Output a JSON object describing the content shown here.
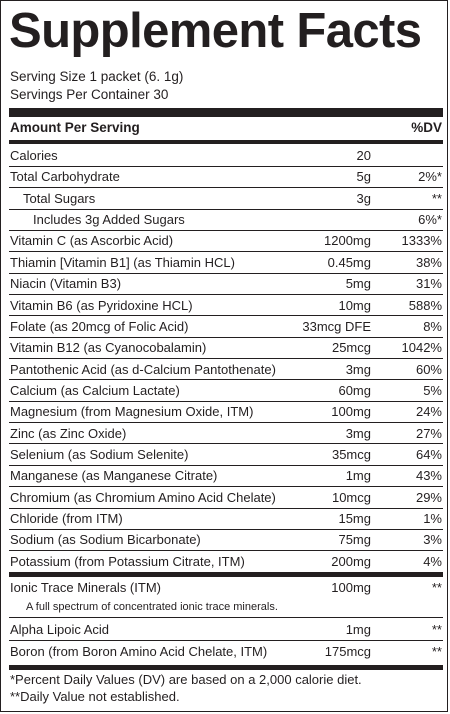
{
  "title": "Supplement Facts",
  "serving_size": "Serving Size 1 packet (6. 1g)",
  "servings_per_container": "Servings Per Container 30",
  "header": {
    "amount": "Amount Per Serving",
    "dv": "%DV"
  },
  "rows": [
    {
      "label": "Calories",
      "amount": "20",
      "dv": ""
    },
    {
      "label": "Total Carbohydrate",
      "amount": "5g",
      "dv": "2%*"
    },
    {
      "label": "Total Sugars",
      "amount": "3g",
      "dv": "**"
    },
    {
      "label": "Includes 3g Added Sugars",
      "amount": "",
      "dv": "6%*"
    },
    {
      "label": "Vitamin C (as Ascorbic Acid)",
      "amount": "1200mg",
      "dv": "1333%"
    },
    {
      "label": "Thiamin [Vitamin B1] (as Thiamin HCL)",
      "amount": "0.45mg",
      "dv": "38%"
    },
    {
      "label": "Niacin (Vitamin B3)",
      "amount": "5mg",
      "dv": "31%"
    },
    {
      "label": "Vitamin B6 (as Pyridoxine HCL)",
      "amount": "10mg",
      "dv": "588%"
    },
    {
      "label": "Folate (as 20mcg of Folic Acid)",
      "amount": "33mcg DFE",
      "dv": "8%"
    },
    {
      "label": "Vitamin B12 (as Cyanocobalamin)",
      "amount": "25mcg",
      "dv": "1042%"
    },
    {
      "label": "Pantothenic Acid (as d-Calcium Pantothenate)",
      "amount": "3mg",
      "dv": "60%"
    },
    {
      "label": "Calcium (as Calcium Lactate)",
      "amount": "60mg",
      "dv": "5%"
    },
    {
      "label": "Magnesium (from Magnesium Oxide, ITM)",
      "amount": "100mg",
      "dv": "24%"
    },
    {
      "label": "Zinc (as Zinc Oxide)",
      "amount": "3mg",
      "dv": "27%"
    },
    {
      "label": "Selenium (as Sodium Selenite)",
      "amount": "35mcg",
      "dv": "64%"
    },
    {
      "label": "Manganese (as Manganese Citrate)",
      "amount": "1mg",
      "dv": "43%"
    },
    {
      "label": "Chromium (as Chromium Amino Acid Chelate)",
      "amount": "10mcg",
      "dv": "29%"
    },
    {
      "label": "Chloride (from ITM)",
      "amount": "15mg",
      "dv": "1%"
    },
    {
      "label": "Sodium (as Sodium Bicarbonate)",
      "amount": "75mg",
      "dv": "3%"
    },
    {
      "label": "Potassium (from Potassium Citrate, ITM)",
      "amount": "200mg",
      "dv": "4%"
    }
  ],
  "itm": {
    "label": "Ionic Trace Minerals (ITM)",
    "amount": "100mg",
    "dv": "**"
  },
  "itm_note": "A full spectrum of concentrated ionic trace minerals.",
  "alpha": {
    "label": "Alpha Lipoic Acid",
    "amount": "1mg",
    "dv": "**"
  },
  "boron": {
    "label": "Boron (from Boron Amino Acid Chelate, ITM)",
    "amount": "175mcg",
    "dv": "**"
  },
  "footnote_1": "*Percent Daily Values (DV) are based on a 2,000 calorie diet.",
  "footnote_2": "**Daily Value not established."
}
